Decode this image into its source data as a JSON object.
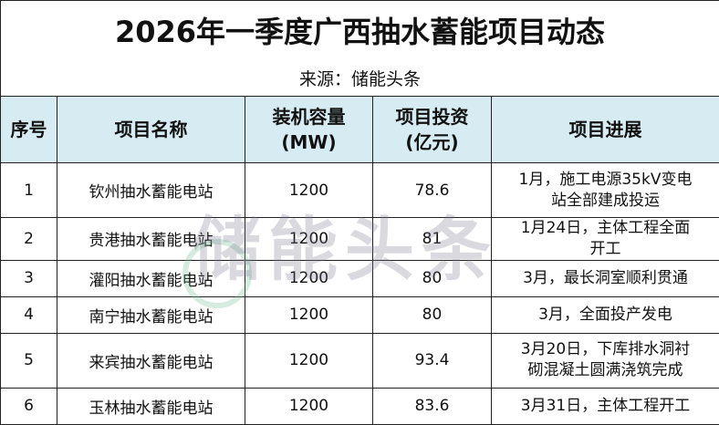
{
  "header": {
    "title": "2026年一季度广西抽水蓄能项目动态",
    "source": "来源：储能头条"
  },
  "table": {
    "columns": [
      [
        "序号"
      ],
      [
        "项目名称"
      ],
      [
        "装机容量",
        "(MW)"
      ],
      [
        "项目投资",
        "(亿元)"
      ],
      [
        "项目进展"
      ]
    ],
    "rows": [
      [
        "1",
        "钦州抽水蓄能电站",
        "1200",
        "78.6",
        "1月，施工电源35kV变电站全部建成投运"
      ],
      [
        "2",
        "贵港抽水蓄能电站",
        "1200",
        "81",
        "1月24日，主体工程全面开工"
      ],
      [
        "3",
        "灌阳抽水蓄能电站",
        "1200",
        "80",
        "3月，最长洞室顺利贯通"
      ],
      [
        "4",
        "南宁抽水蓄能电站",
        "1200",
        "80",
        "3月，全面投产发电"
      ],
      [
        "5",
        "来宾抽水蓄能电站",
        "1200",
        "93.4",
        "3月20日，下库排水洞衬砌混凝土圆满浇筑完成"
      ],
      [
        "6",
        "玉林抽水蓄能电站",
        "1200",
        "83.6",
        "3月31日，主体工程开工"
      ]
    ]
  },
  "watermark": "储能头条"
}
